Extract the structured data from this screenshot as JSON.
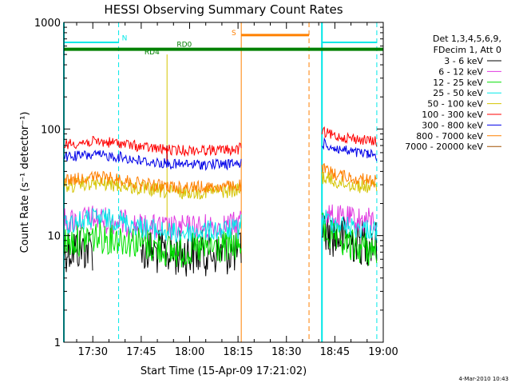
{
  "chart_data": {
    "type": "line",
    "title": "HESSI Observing Summary Count Rates",
    "xlabel": "Start Time (15-Apr-09 17:21:02)",
    "ylabel": "Count Rate (s⁻¹ detector⁻¹)",
    "y_scale": "log",
    "ylim": [
      1,
      1000
    ],
    "xlim": [
      "17:21:02",
      "19:00:00"
    ],
    "x_ticks": [
      "17:30",
      "17:45",
      "18:00",
      "18:15",
      "18:30",
      "18:45",
      "19:00"
    ],
    "y_ticks": [
      "1",
      "10",
      "100",
      "1000"
    ],
    "grid": false,
    "legend_position": "right",
    "legend_header": [
      "Det 1,3,4,5,6,9,",
      "FDecim 1, Att 0"
    ],
    "series": [
      {
        "name": "3 - 6 keV",
        "color": "#000000",
        "values": [
          [
            "17:21:02",
            7.5
          ],
          [
            "17:30",
            7.6
          ],
          [
            "17:45",
            7.2
          ],
          [
            "17:55",
            6.8
          ],
          [
            "18:05",
            6.9
          ],
          [
            "18:15",
            7.0
          ],
          [
            "18:16",
            7.3
          ],
          [
            "18:41",
            12.0
          ],
          [
            "18:45",
            10.0
          ],
          [
            "18:50",
            9.0
          ],
          [
            "18:55",
            8.5
          ],
          [
            "18:58",
            8.8
          ]
        ]
      },
      {
        "name": "6 - 12 keV",
        "color": "#e03ae0",
        "values": [
          [
            "17:21:02",
            13.5
          ],
          [
            "17:30",
            14.5
          ],
          [
            "17:38",
            13.5
          ],
          [
            "17:45",
            12.0
          ],
          [
            "17:55",
            11.5
          ],
          [
            "18:05",
            12.0
          ],
          [
            "18:15",
            12.5
          ],
          [
            "18:16",
            15.0
          ],
          [
            "18:41",
            16.0
          ],
          [
            "18:45",
            14.5
          ],
          [
            "18:50",
            14.0
          ],
          [
            "18:55",
            13.8
          ],
          [
            "18:58",
            13.5
          ]
        ]
      },
      {
        "name": "12 - 25 keV",
        "color": "#00e000",
        "values": [
          [
            "17:21:02",
            8.5
          ],
          [
            "17:30",
            9.8
          ],
          [
            "17:38",
            9.5
          ],
          [
            "17:45",
            8.5
          ],
          [
            "17:55",
            7.0
          ],
          [
            "18:05",
            7.5
          ],
          [
            "18:15",
            8.0
          ],
          [
            "18:16",
            9.0
          ],
          [
            "18:41",
            12.0
          ],
          [
            "18:45",
            9.0
          ],
          [
            "18:50",
            8.0
          ],
          [
            "18:55",
            7.5
          ],
          [
            "18:58",
            7.2
          ]
        ]
      },
      {
        "name": "25 - 50 keV",
        "color": "#00e8e8",
        "values": [
          [
            "17:21:02",
            12.5
          ],
          [
            "17:30",
            14.5
          ],
          [
            "17:38",
            14.0
          ],
          [
            "17:45",
            12.0
          ],
          [
            "17:55",
            10.5
          ],
          [
            "18:05",
            11.0
          ],
          [
            "18:15",
            11.5
          ],
          [
            "18:16",
            13.0
          ],
          [
            "18:41",
            15.0
          ],
          [
            "18:45",
            13.0
          ],
          [
            "18:50",
            12.0
          ],
          [
            "18:55",
            11.5
          ],
          [
            "18:58",
            11.2
          ]
        ]
      },
      {
        "name": "50 - 100 keV",
        "color": "#d4c400",
        "values": [
          [
            "17:21:02",
            29.0
          ],
          [
            "17:30",
            31.0
          ],
          [
            "17:38",
            30.0
          ],
          [
            "17:45",
            27.5
          ],
          [
            "17:55",
            25.5
          ],
          [
            "18:05",
            26.0
          ],
          [
            "18:15",
            26.5
          ],
          [
            "18:16",
            27.0
          ],
          [
            "18:41",
            36.0
          ],
          [
            "18:45",
            32.0
          ],
          [
            "18:50",
            30.0
          ],
          [
            "18:55",
            29.0
          ],
          [
            "18:58",
            28.0
          ]
        ]
      },
      {
        "name": "100 - 300 keV",
        "color": "#ff0000",
        "values": [
          [
            "17:21:02",
            72.0
          ],
          [
            "17:30",
            76.0
          ],
          [
            "17:38",
            74.0
          ],
          [
            "17:45",
            68.0
          ],
          [
            "17:55",
            63.0
          ],
          [
            "18:05",
            63.5
          ],
          [
            "18:15",
            64.0
          ],
          [
            "18:16",
            68.0
          ],
          [
            "18:41",
            94.0
          ],
          [
            "18:45",
            86.0
          ],
          [
            "18:50",
            82.0
          ],
          [
            "18:55",
            78.0
          ],
          [
            "18:58",
            76.0
          ]
        ]
      },
      {
        "name": "300 - 800 keV",
        "color": "#0000e8",
        "values": [
          [
            "17:21:02",
            55.0
          ],
          [
            "17:30",
            57.0
          ],
          [
            "17:38",
            55.0
          ],
          [
            "17:45",
            50.0
          ],
          [
            "17:55",
            46.5
          ],
          [
            "18:05",
            46.5
          ],
          [
            "18:15",
            47.0
          ],
          [
            "18:16",
            48.0
          ],
          [
            "18:41",
            74.0
          ],
          [
            "18:45",
            66.0
          ],
          [
            "18:50",
            61.0
          ],
          [
            "18:55",
            58.0
          ],
          [
            "18:58",
            56.0
          ]
        ]
      },
      {
        "name": "800 - 7000 keV",
        "color": "#ff8000",
        "values": [
          [
            "17:21:02",
            33.0
          ],
          [
            "17:30",
            35.5
          ],
          [
            "17:38",
            34.0
          ],
          [
            "17:45",
            30.5
          ],
          [
            "17:55",
            28.5
          ],
          [
            "18:05",
            28.5
          ],
          [
            "18:15",
            29.0
          ],
          [
            "18:16",
            30.0
          ],
          [
            "18:41",
            42.0
          ],
          [
            "18:45",
            38.0
          ],
          [
            "18:50",
            35.0
          ],
          [
            "18:55",
            33.5
          ],
          [
            "18:58",
            32.0
          ]
        ]
      },
      {
        "name": "7000 - 20000 keV",
        "color": "#a05000",
        "values": []
      }
    ],
    "annotations": {
      "level_bar": {
        "y": 560,
        "x": [
          "17:21:02",
          "19:00:00"
        ],
        "color": "#008000"
      },
      "cyan_top_bars": [
        {
          "x": [
            "17:21:02",
            "17:38"
          ],
          "y": 650
        },
        {
          "x": [
            "18:41",
            "18:58"
          ],
          "y": 650
        }
      ],
      "orange_top_bar": {
        "x": [
          "18:16",
          "18:37"
        ],
        "y": 760,
        "color": "#ff8000"
      },
      "solid_cyan_lines": [
        "17:21:02",
        "18:41"
      ],
      "dashed_cyan_lines": [
        "17:38",
        "18:58"
      ],
      "solid_orange_line": "18:16",
      "dashed_orange_line": "18:37",
      "event_line": {
        "x": "17:53",
        "from": 10,
        "to": 500,
        "marks": [
          [
            50,
            70
          ]
        ]
      },
      "labels": [
        {
          "text": "N",
          "x": "17:39",
          "y": 680,
          "color": "#00e8e8"
        },
        {
          "text": "S",
          "x": "18:13",
          "y": 760,
          "color": "#ff8000"
        },
        {
          "text": "RD0",
          "x": "17:56",
          "y": 590,
          "color": "#008000"
        },
        {
          "text": "RD4",
          "x": "17:46",
          "y": 500,
          "color": "#008000"
        }
      ]
    }
  },
  "footer": {
    "timestamp": "4-Mar-2010 10:43"
  }
}
